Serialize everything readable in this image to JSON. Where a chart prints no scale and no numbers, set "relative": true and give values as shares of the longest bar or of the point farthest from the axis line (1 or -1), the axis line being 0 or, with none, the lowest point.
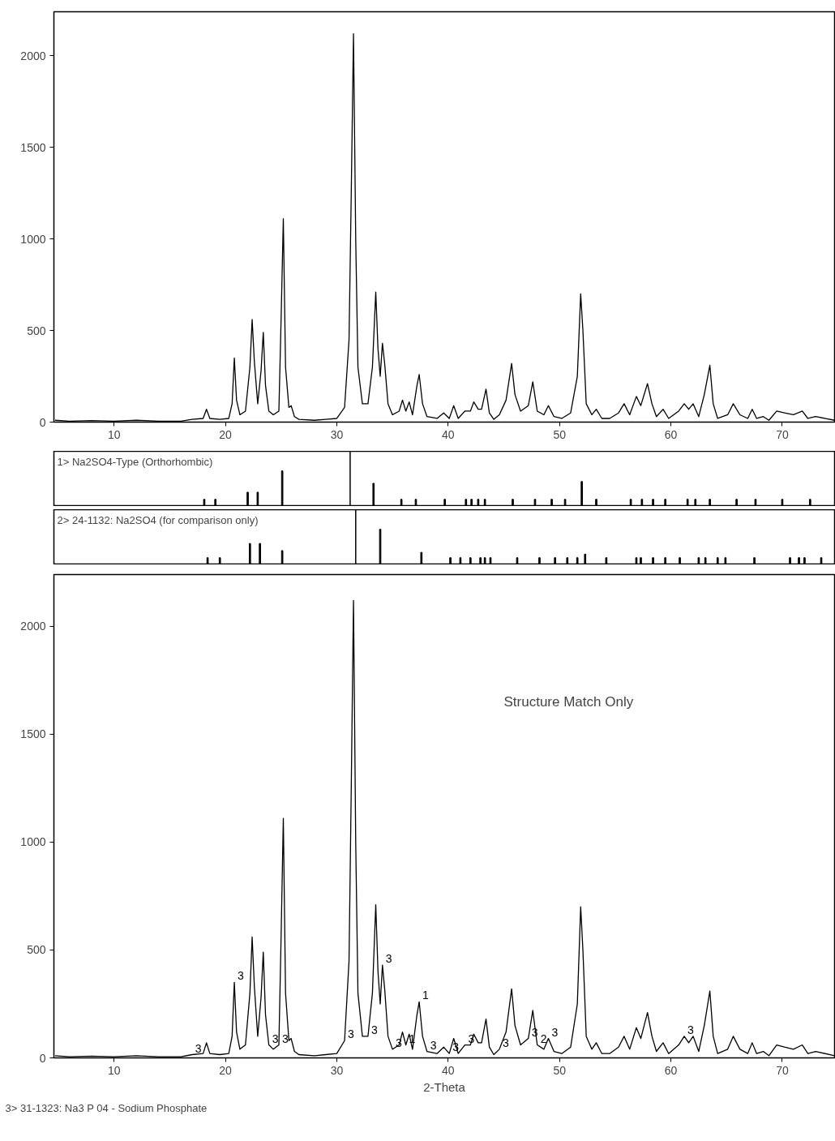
{
  "chart_data": [
    {
      "type": "line",
      "xlim": [
        4.6,
        74.7
      ],
      "ylim": [
        0,
        2240
      ],
      "xticks": [
        10,
        20,
        30,
        40,
        50,
        60,
        70
      ],
      "yticks": [
        0,
        500,
        1000,
        1500,
        2000
      ],
      "grid": false,
      "marker": "none",
      "line_style": "solid",
      "series": [
        {
          "color": "#000000",
          "x": [
            4.7,
            6,
            8,
            10,
            12,
            14,
            16,
            17,
            18,
            18.3,
            18.6,
            19.5,
            20.3,
            20.6,
            20.8,
            21.0,
            21.3,
            21.8,
            22.2,
            22.4,
            22.6,
            22.9,
            23.2,
            23.4,
            23.6,
            23.9,
            24.3,
            24.8,
            25.0,
            25.2,
            25.4,
            25.7,
            25.9,
            26.2,
            26.6,
            28,
            29,
            30,
            30.7,
            31.1,
            31.3,
            31.5,
            31.7,
            31.9,
            32.3,
            32.8,
            33.2,
            33.5,
            33.7,
            33.9,
            34.1,
            34.3,
            34.6,
            35.0,
            35.6,
            35.9,
            36.2,
            36.5,
            36.8,
            37.2,
            37.4,
            37.7,
            38.1,
            39,
            39.6,
            40.1,
            40.5,
            40.9,
            41.5,
            42.0,
            42.3,
            42.7,
            43.0,
            43.4,
            43.7,
            44.1,
            44.6,
            45.2,
            45.7,
            46.0,
            46.5,
            47.2,
            47.6,
            48.0,
            48.6,
            49.0,
            49.5,
            50.2,
            51.0,
            51.6,
            51.9,
            52.1,
            52.4,
            52.9,
            53.3,
            53.8,
            54.5,
            55.3,
            55.8,
            56.3,
            56.9,
            57.3,
            57.9,
            58.3,
            58.7,
            59.3,
            59.8,
            60.7,
            61.2,
            61.6,
            62.0,
            62.5,
            63.0,
            63.5,
            63.8,
            64.2,
            65.1,
            65.6,
            66.2,
            66.9,
            67.3,
            67.7,
            68.3,
            68.8,
            69.5,
            70.2,
            71.0,
            71.8,
            72.3,
            73,
            74.7
          ],
          "values": [
            10,
            5,
            8,
            5,
            10,
            5,
            5,
            15,
            20,
            70,
            20,
            15,
            20,
            100,
            350,
            120,
            40,
            60,
            300,
            560,
            330,
            100,
            280,
            490,
            200,
            60,
            40,
            60,
            560,
            1110,
            300,
            80,
            90,
            30,
            15,
            10,
            15,
            20,
            80,
            450,
            1250,
            2120,
            1000,
            300,
            100,
            100,
            300,
            710,
            400,
            250,
            430,
            320,
            100,
            40,
            60,
            120,
            60,
            110,
            40,
            200,
            260,
            100,
            30,
            20,
            50,
            20,
            90,
            20,
            60,
            60,
            110,
            70,
            70,
            180,
            50,
            15,
            40,
            120,
            320,
            150,
            60,
            90,
            220,
            60,
            40,
            90,
            30,
            20,
            50,
            250,
            700,
            500,
            100,
            40,
            70,
            20,
            20,
            50,
            100,
            40,
            140,
            90,
            210,
            100,
            30,
            70,
            20,
            60,
            100,
            70,
            100,
            30,
            150,
            310,
            100,
            20,
            40,
            100,
            40,
            20,
            70,
            20,
            30,
            10,
            60,
            50,
            40,
            60,
            20,
            30,
            10
          ]
        }
      ]
    },
    {
      "type": "bar",
      "title": "1> Na2SO4-Type (Orthorhombic)",
      "relative": true,
      "xlim": [
        4.6,
        74.7
      ],
      "x": [
        18.1,
        19.1,
        22.0,
        22.9,
        25.1,
        33.3,
        35.8,
        37.1,
        39.7,
        41.6,
        42.1,
        42.7,
        43.3,
        45.8,
        47.8,
        49.3,
        50.5,
        52.0,
        53.3,
        56.4,
        57.4,
        58.4,
        59.5,
        61.5,
        62.2,
        63.5,
        65.9,
        67.6,
        70.0,
        72.5
      ],
      "values": [
        0.2,
        0.2,
        0.4,
        0.4,
        1,
        0.65,
        0.2,
        0.2,
        0.2,
        0.2,
        0.2,
        0.2,
        0.2,
        0.2,
        0.2,
        0.2,
        0.2,
        0.7,
        0.2,
        0.2,
        0.2,
        0.2,
        0.2,
        0.2,
        0.2,
        0.2,
        0.2,
        0.2,
        0.2,
        0.2
      ],
      "color": "#000000",
      "ref_lines": [
        {
          "axis": "x",
          "value": 31.2,
          "color": "#000000"
        }
      ]
    },
    {
      "type": "bar",
      "title": "2> 24-1132: Na2SO4 (for comparison only)",
      "relative": true,
      "xlim": [
        4.6,
        74.7
      ],
      "x": [
        18.4,
        19.5,
        22.2,
        23.1,
        25.1,
        33.9,
        37.6,
        40.2,
        41.1,
        42.0,
        42.9,
        43.3,
        43.8,
        46.2,
        48.2,
        49.6,
        50.7,
        51.6,
        52.3,
        54.2,
        56.9,
        57.3,
        58.4,
        59.5,
        60.8,
        62.5,
        63.1,
        64.2,
        64.9,
        67.5,
        70.7,
        71.5,
        72.0,
        73.5
      ],
      "values": [
        0.2,
        0.2,
        0.6,
        0.6,
        0.4,
        1,
        0.35,
        0.2,
        0.2,
        0.2,
        0.2,
        0.2,
        0.2,
        0.2,
        0.2,
        0.2,
        0.2,
        0.2,
        0.3,
        0.2,
        0.2,
        0.2,
        0.2,
        0.2,
        0.2,
        0.2,
        0.2,
        0.2,
        0.2,
        0.2,
        0.2,
        0.2,
        0.2,
        0.2
      ],
      "color": "#000000",
      "ref_lines": [
        {
          "axis": "x",
          "value": 31.7,
          "color": "#000000"
        }
      ]
    },
    {
      "type": "line",
      "xlabel": "2-Theta",
      "xlim": [
        4.6,
        74.7
      ],
      "ylim": [
        0,
        2240
      ],
      "xticks": [
        10,
        20,
        30,
        40,
        50,
        60,
        70
      ],
      "yticks": [
        0,
        500,
        1000,
        1500,
        2000
      ],
      "grid": false,
      "marker": "none",
      "line_style": "solid",
      "series": [
        {
          "color": "#000000",
          "x": [
            4.7,
            6,
            8,
            10,
            12,
            14,
            16,
            17,
            18,
            18.3,
            18.6,
            19.5,
            20.3,
            20.6,
            20.8,
            21.0,
            21.3,
            21.8,
            22.2,
            22.4,
            22.6,
            22.9,
            23.2,
            23.4,
            23.6,
            23.9,
            24.3,
            24.8,
            25.0,
            25.2,
            25.4,
            25.7,
            25.9,
            26.2,
            26.6,
            28,
            29,
            30,
            30.7,
            31.1,
            31.3,
            31.5,
            31.7,
            31.9,
            32.3,
            32.8,
            33.2,
            33.5,
            33.7,
            33.9,
            34.1,
            34.3,
            34.6,
            35.0,
            35.6,
            35.9,
            36.2,
            36.5,
            36.8,
            37.2,
            37.4,
            37.7,
            38.1,
            39,
            39.6,
            40.1,
            40.5,
            40.9,
            41.5,
            42.0,
            42.3,
            42.7,
            43.0,
            43.4,
            43.7,
            44.1,
            44.6,
            45.2,
            45.7,
            46.0,
            46.5,
            47.2,
            47.6,
            48.0,
            48.6,
            49.0,
            49.5,
            50.2,
            51.0,
            51.6,
            51.9,
            52.1,
            52.4,
            52.9,
            53.3,
            53.8,
            54.5,
            55.3,
            55.8,
            56.3,
            56.9,
            57.3,
            57.9,
            58.3,
            58.7,
            59.3,
            59.8,
            60.7,
            61.2,
            61.6,
            62.0,
            62.5,
            63.0,
            63.5,
            63.8,
            64.2,
            65.1,
            65.6,
            66.2,
            66.9,
            67.3,
            67.7,
            68.3,
            68.8,
            69.5,
            70.2,
            71.0,
            71.8,
            72.3,
            73,
            74.7
          ],
          "values": [
            10,
            5,
            8,
            5,
            10,
            5,
            5,
            15,
            20,
            70,
            20,
            15,
            20,
            100,
            350,
            120,
            40,
            60,
            300,
            560,
            330,
            100,
            280,
            490,
            200,
            60,
            40,
            60,
            560,
            1110,
            300,
            80,
            90,
            30,
            15,
            10,
            15,
            20,
            80,
            450,
            1250,
            2120,
            1000,
            300,
            100,
            100,
            300,
            710,
            400,
            250,
            430,
            320,
            100,
            40,
            60,
            120,
            60,
            110,
            40,
            200,
            260,
            100,
            30,
            20,
            50,
            20,
            90,
            20,
            60,
            60,
            110,
            70,
            70,
            180,
            50,
            15,
            40,
            120,
            320,
            150,
            60,
            90,
            220,
            60,
            40,
            90,
            30,
            20,
            50,
            250,
            700,
            500,
            100,
            40,
            70,
            20,
            20,
            50,
            100,
            40,
            140,
            90,
            210,
            100,
            30,
            70,
            20,
            60,
            100,
            70,
            100,
            30,
            150,
            310,
            100,
            20,
            40,
            100,
            40,
            20,
            70,
            20,
            30,
            10,
            60,
            50,
            40,
            60,
            20,
            30,
            10
          ]
        }
      ],
      "annotations": [
        "Structure Match Only",
        "3> 31-1323: Na3 P 04 - Sodium Phosphate",
        {
          "text": "3",
          "x": 17,
          "y": 15
        },
        {
          "text": "3",
          "x": 20.8,
          "y": 350
        },
        {
          "text": "3",
          "x": 23.9,
          "y": 60
        },
        {
          "text": "3",
          "x": 24.8,
          "y": 60
        },
        {
          "text": "3",
          "x": 30.7,
          "y": 80
        },
        {
          "text": "3",
          "x": 32.8,
          "y": 100
        },
        {
          "text": "3",
          "x": 34.1,
          "y": 430
        },
        {
          "text": "3",
          "x": 35.0,
          "y": 40
        },
        {
          "text": "1",
          "x": 36.2,
          "y": 60
        },
        {
          "text": "1",
          "x": 37.4,
          "y": 260
        },
        {
          "text": "3",
          "x": 38.1,
          "y": 30
        },
        {
          "text": "3",
          "x": 40.1,
          "y": 20
        },
        {
          "text": "3",
          "x": 41.5,
          "y": 60
        },
        {
          "text": "3",
          "x": 44.6,
          "y": 40
        },
        {
          "text": "3",
          "x": 47.2,
          "y": 90
        },
        {
          "text": "2",
          "x": 48.0,
          "y": 60
        },
        {
          "text": "3",
          "x": 49.0,
          "y": 90
        },
        {
          "text": "3",
          "x": 61.2,
          "y": 100
        }
      ]
    }
  ]
}
